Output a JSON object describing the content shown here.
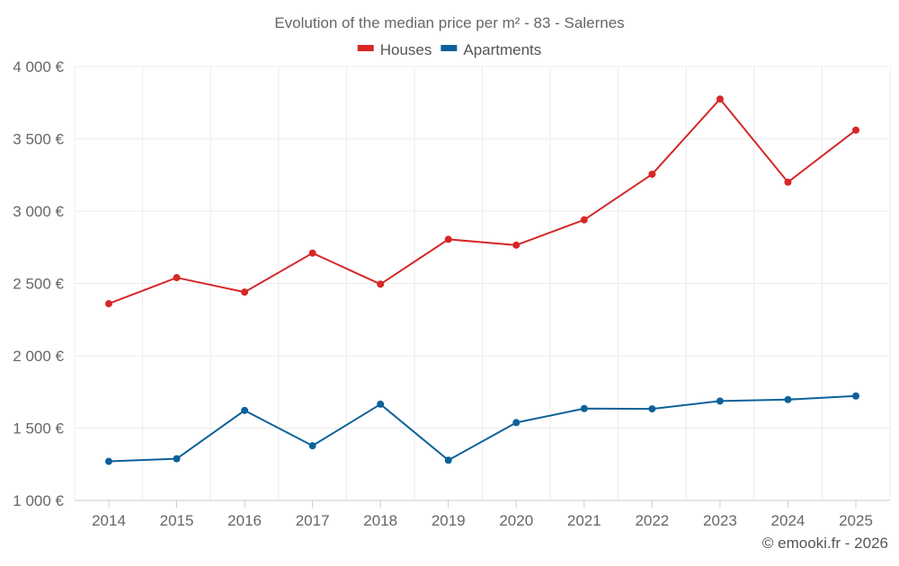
{
  "chart_data": {
    "type": "line",
    "title": "Evolution of the median price per m² - 83 - Salernes",
    "categories": [
      "2014",
      "2015",
      "2016",
      "2017",
      "2018",
      "2019",
      "2020",
      "2021",
      "2022",
      "2023",
      "2024",
      "2025"
    ],
    "series": [
      {
        "name": "Houses",
        "color": "#d62728",
        "values": [
          2360,
          2540,
          2440,
          2710,
          2495,
          2805,
          2765,
          2940,
          3255,
          3775,
          3200,
          3560
        ]
      },
      {
        "name": "Apartments",
        "color": "#0d6199",
        "values": [
          1270,
          1288,
          1622,
          1378,
          1665,
          1278,
          1538,
          1635,
          1633,
          1687,
          1697,
          1722
        ]
      }
    ],
    "ylim": [
      1000,
      4000
    ],
    "yticks": [
      1000,
      1500,
      2000,
      2500,
      3000,
      3500,
      4000
    ],
    "ytick_labels": [
      "1 000 €",
      "1 500 €",
      "2 000 €",
      "2 500 €",
      "3 000 €",
      "3 500 €",
      "4 000 €"
    ],
    "xlabel": "",
    "ylabel": "",
    "grid": true,
    "legend_position": "top-center"
  },
  "copyright": "© emooki.fr - 2026"
}
